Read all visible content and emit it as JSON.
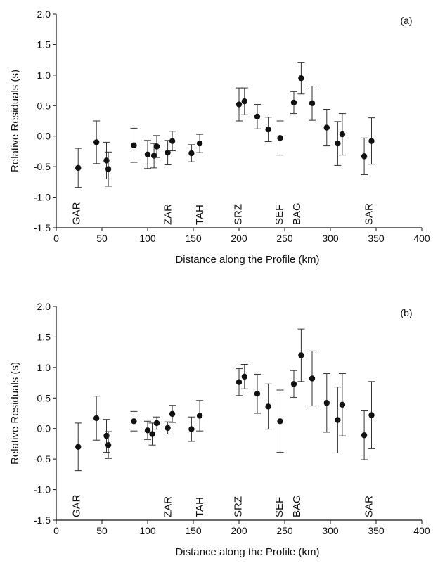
{
  "chart_data": [
    {
      "type": "scatter",
      "panel_label": "(a)",
      "xlabel": "Distance along the Profile (km)",
      "ylabel": "Relative Residuals (s)",
      "xlim": [
        0,
        400
      ],
      "ylim": [
        -1.5,
        2.0
      ],
      "x_ticks": [
        "0",
        "50",
        "100",
        "150",
        "200",
        "250",
        "300",
        "350",
        "400"
      ],
      "y_ticks": [
        "-1.5",
        "-1.0",
        "-0.5",
        "0.0",
        "0.5",
        "1.0",
        "1.5",
        "2.0"
      ],
      "grid": false,
      "error_bars": true,
      "points": [
        {
          "x": 24,
          "y": -0.52,
          "err": 0.32
        },
        {
          "x": 44,
          "y": -0.1,
          "err": 0.35
        },
        {
          "x": 55,
          "y": -0.4,
          "err": 0.3
        },
        {
          "x": 57,
          "y": -0.54,
          "err": 0.28
        },
        {
          "x": 85,
          "y": -0.15,
          "err": 0.28
        },
        {
          "x": 100,
          "y": -0.3,
          "err": 0.23
        },
        {
          "x": 107,
          "y": -0.32,
          "err": 0.2
        },
        {
          "x": 110,
          "y": -0.17,
          "err": 0.18
        },
        {
          "x": 122,
          "y": -0.27,
          "err": 0.2
        },
        {
          "x": 127,
          "y": -0.08,
          "err": 0.16
        },
        {
          "x": 148,
          "y": -0.28,
          "err": 0.14
        },
        {
          "x": 157,
          "y": -0.12,
          "err": 0.15
        },
        {
          "x": 200,
          "y": 0.52,
          "err": 0.27
        },
        {
          "x": 206,
          "y": 0.57,
          "err": 0.22
        },
        {
          "x": 220,
          "y": 0.32,
          "err": 0.2
        },
        {
          "x": 232,
          "y": 0.11,
          "err": 0.2
        },
        {
          "x": 245,
          "y": -0.03,
          "err": 0.28
        },
        {
          "x": 260,
          "y": 0.55,
          "err": 0.18
        },
        {
          "x": 268,
          "y": 0.95,
          "err": 0.26
        },
        {
          "x": 280,
          "y": 0.54,
          "err": 0.28
        },
        {
          "x": 296,
          "y": 0.14,
          "err": 0.3
        },
        {
          "x": 308,
          "y": -0.12,
          "err": 0.36
        },
        {
          "x": 313,
          "y": 0.03,
          "err": 0.34
        },
        {
          "x": 337,
          "y": -0.33,
          "err": 0.3
        },
        {
          "x": 345,
          "y": -0.08,
          "err": 0.38
        }
      ],
      "stations": [
        {
          "label": "GAR",
          "x": 22
        },
        {
          "label": "ZAR",
          "x": 122
        },
        {
          "label": "TAH",
          "x": 157
        },
        {
          "label": "SRZ",
          "x": 199
        },
        {
          "label": "SEF",
          "x": 244
        },
        {
          "label": "BAG",
          "x": 263
        },
        {
          "label": "SAR",
          "x": 342
        }
      ]
    },
    {
      "type": "scatter",
      "panel_label": "(b)",
      "xlabel": "Distance along the Profile (km)",
      "ylabel": "Relative Residuals (s)",
      "xlim": [
        0,
        400
      ],
      "ylim": [
        -1.5,
        2.0
      ],
      "x_ticks": [
        "0",
        "50",
        "100",
        "150",
        "200",
        "250",
        "300",
        "350",
        "400"
      ],
      "y_ticks": [
        "-1.5",
        "-1.0",
        "-0.5",
        "0.0",
        "0.5",
        "1.0",
        "1.5",
        "2.0"
      ],
      "grid": false,
      "error_bars": true,
      "points": [
        {
          "x": 24,
          "y": -0.3,
          "err": 0.39
        },
        {
          "x": 44,
          "y": 0.17,
          "err": 0.36
        },
        {
          "x": 55,
          "y": -0.12,
          "err": 0.27
        },
        {
          "x": 57,
          "y": -0.27,
          "err": 0.22
        },
        {
          "x": 85,
          "y": 0.12,
          "err": 0.16
        },
        {
          "x": 100,
          "y": -0.03,
          "err": 0.15
        },
        {
          "x": 105,
          "y": -0.09,
          "err": 0.18
        },
        {
          "x": 110,
          "y": 0.09,
          "err": 0.1
        },
        {
          "x": 122,
          "y": 0.01,
          "err": 0.1
        },
        {
          "x": 127,
          "y": 0.24,
          "err": 0.14
        },
        {
          "x": 148,
          "y": -0.01,
          "err": 0.2
        },
        {
          "x": 157,
          "y": 0.21,
          "err": 0.25
        },
        {
          "x": 200,
          "y": 0.76,
          "err": 0.22
        },
        {
          "x": 206,
          "y": 0.85,
          "err": 0.2
        },
        {
          "x": 220,
          "y": 0.57,
          "err": 0.32
        },
        {
          "x": 232,
          "y": 0.36,
          "err": 0.37
        },
        {
          "x": 245,
          "y": 0.12,
          "err": 0.51
        },
        {
          "x": 260,
          "y": 0.73,
          "err": 0.22
        },
        {
          "x": 268,
          "y": 1.2,
          "err": 0.43
        },
        {
          "x": 280,
          "y": 0.82,
          "err": 0.45
        },
        {
          "x": 296,
          "y": 0.42,
          "err": 0.48
        },
        {
          "x": 308,
          "y": 0.14,
          "err": 0.54
        },
        {
          "x": 313,
          "y": 0.39,
          "err": 0.51
        },
        {
          "x": 337,
          "y": -0.11,
          "err": 0.4
        },
        {
          "x": 345,
          "y": 0.22,
          "err": 0.55
        }
      ],
      "stations": [
        {
          "label": "GAR",
          "x": 22
        },
        {
          "label": "ZAR",
          "x": 122
        },
        {
          "label": "TAH",
          "x": 157
        },
        {
          "label": "SRZ",
          "x": 199
        },
        {
          "label": "SEF",
          "x": 244
        },
        {
          "label": "BAG",
          "x": 263
        },
        {
          "label": "SAR",
          "x": 342
        }
      ]
    }
  ]
}
